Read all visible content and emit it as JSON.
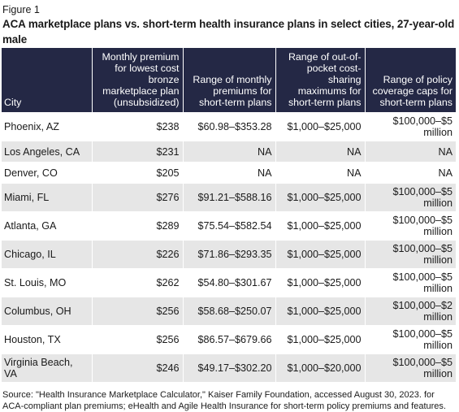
{
  "figure": {
    "label": "Figure 1",
    "title": "ACA marketplace plans vs. short-term health insurance plans in select cities, 27-year-old male"
  },
  "table": {
    "headers": [
      "City",
      "Monthly premium for lowest cost bronze marketplace plan (unsubsidized)",
      "Range of monthly premiums for short-term plans",
      "Range of out-of-pocket cost-sharing maximums for short-term plans",
      "Range of policy coverage caps for short-term plans"
    ],
    "rows": [
      {
        "city": "Phoenix, AZ",
        "bronze": "$238",
        "premiums": "$60.98–$353.28",
        "oop": "$1,000–$25,000",
        "caps": "$100,000–$5 million"
      },
      {
        "city": "Los Angeles, CA",
        "bronze": "$231",
        "premiums": "NA",
        "oop": "NA",
        "caps": "NA"
      },
      {
        "city": "Denver, CO",
        "bronze": "$205",
        "premiums": "NA",
        "oop": "NA",
        "caps": "NA"
      },
      {
        "city": "Miami, FL",
        "bronze": "$276",
        "premiums": "$91.21–$588.16",
        "oop": "$1,000–$25,000",
        "caps": "$100,000–$5 million"
      },
      {
        "city": "Atlanta, GA",
        "bronze": "$289",
        "premiums": "$75.54–$582.54",
        "oop": "$1,000–$25,000",
        "caps": "$100,000–$5 million"
      },
      {
        "city": "Chicago, IL",
        "bronze": "$226",
        "premiums": "$71.86–$293.35",
        "oop": "$1,000–$25,000",
        "caps": "$100,000–$5 million"
      },
      {
        "city": "St. Louis, MO",
        "bronze": "$262",
        "premiums": "$54.80–$301.67",
        "oop": "$1,000–$25,000",
        "caps": "$100,000–$5 million"
      },
      {
        "city": "Columbus, OH",
        "bronze": "$256",
        "premiums": "$58.68–$250.07",
        "oop": "$1,000–$25,000",
        "caps": "$100,000–$2 million"
      },
      {
        "city": "Houston, TX",
        "bronze": "$256",
        "premiums": "$86.57–$679.66",
        "oop": "$1,000–$25,000",
        "caps": "$100,000–$5 million"
      },
      {
        "city": "Virginia Beach, VA",
        "bronze": "$246",
        "premiums": "$49.17–$302.20",
        "oop": "$1,000–$20,000",
        "caps": "$100,000–$5 million"
      }
    ]
  },
  "source": "Source: \"Health Insurance Marketplace Calculator,\" Kaiser Family Foundation, accessed August 30, 2023. for ACA-compliant plan premiums; eHealth and Agile Health Insurance for short-term policy premiums and features.",
  "colors": {
    "header_bg": "#242845",
    "shade_bg": "#e6e6e6"
  }
}
